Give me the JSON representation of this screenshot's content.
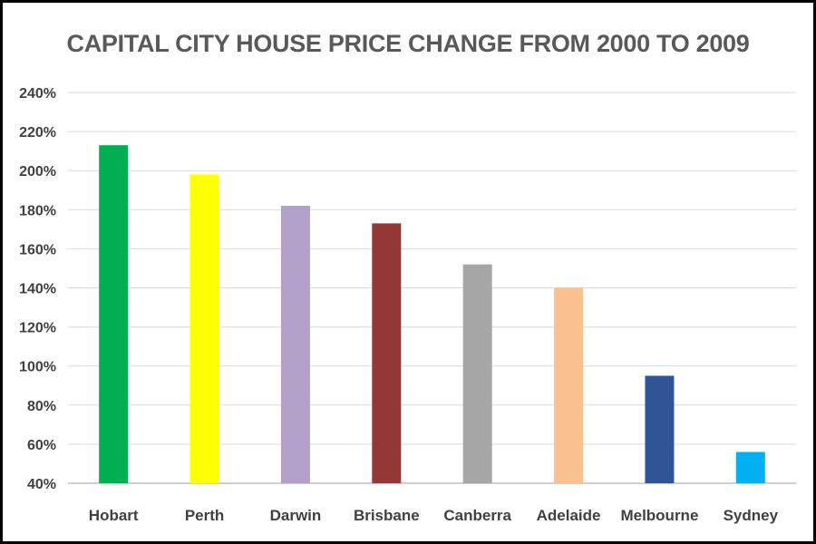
{
  "chart_data": {
    "type": "bar",
    "title": "CAPITAL CITY HOUSE PRICE CHANGE FROM 2000 TO 2009",
    "xlabel": "",
    "ylabel": "",
    "categories": [
      "Hobart",
      "Perth",
      "Darwin",
      "Brisbane",
      "Canberra",
      "Adelaide",
      "Melbourne",
      "Sydney"
    ],
    "values": [
      213,
      198,
      182,
      173,
      152,
      140,
      95,
      56
    ],
    "unit": "%",
    "ylim": [
      40,
      240
    ],
    "yticks": [
      "40%",
      "60%",
      "80%",
      "100%",
      "120%",
      "140%",
      "160%",
      "180%",
      "200%",
      "220%",
      "240%"
    ],
    "grid": true,
    "colors": [
      "#00B050",
      "#FFFF00",
      "#B1A0C7",
      "#953735",
      "#A6A6A6",
      "#FAC090",
      "#2F5597",
      "#00B0F0"
    ]
  }
}
